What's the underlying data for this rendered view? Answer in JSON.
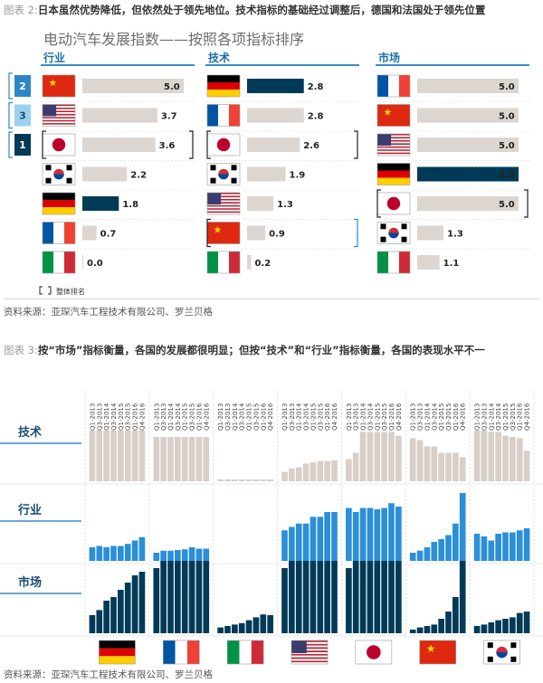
{
  "figure2": {
    "title_num": "图表 2:",
    "title_text": "日本虽然优势降低，但依然处于领先地位。技术指标的基础经过调整后，德国和法国处于领先位置",
    "subtitle": "电动汽车发展指数——按照各项指标排序",
    "legend_note": "整体排名",
    "source": "资料来源：亚琛汽车工程技术有限公司、罗兰贝格"
  },
  "figure3": {
    "title_num": "图表 3:",
    "title_text": "按“市场”指标衡量，各国的发展都很明显；但按“技术”和“行业”指标衡量，各国的表现水平不一",
    "source": "资料来源：亚琛汽车工程技术有限公司、罗兰贝格"
  },
  "colors": {
    "bar_default": "#ddd6d0",
    "bar_highlight": "#003a57",
    "tech_bar": "#d8cfc9",
    "industry_bar": "#2b8fd7",
    "market_bar": "#003a57",
    "rank_border": "#2f86c6",
    "title_blue": "#1b6fa8"
  },
  "chart_data": [
    {
      "type": "bar",
      "orientation": "horizontal",
      "title": "电动汽车发展指数——按照各项指标排序",
      "xlim": [
        0,
        5
      ],
      "overall_ranks": [
        {
          "rank": "2",
          "country": "China"
        },
        {
          "rank": "3",
          "country": "USA"
        },
        {
          "rank": "1",
          "country": "Japan"
        }
      ],
      "panels": [
        {
          "name": "行业",
          "rows": [
            {
              "flag": "china",
              "value": 5.0,
              "label": "5.0",
              "highlight": false,
              "bracket": false
            },
            {
              "flag": "usa",
              "value": 3.7,
              "label": "3.7",
              "highlight": false,
              "bracket": false
            },
            {
              "flag": "japan",
              "value": 3.6,
              "label": "3.6",
              "highlight": false,
              "bracket": true
            },
            {
              "flag": "korea",
              "value": 2.2,
              "label": "2.2",
              "highlight": false,
              "bracket": false
            },
            {
              "flag": "germany",
              "value": 1.8,
              "label": "1.8",
              "highlight": true,
              "bracket": false
            },
            {
              "flag": "france",
              "value": 0.7,
              "label": "0.7",
              "highlight": false,
              "bracket": false
            },
            {
              "flag": "italy",
              "value": 0.0,
              "label": "0.0",
              "highlight": false,
              "bracket": false
            }
          ]
        },
        {
          "name": "技术",
          "rows": [
            {
              "flag": "germany",
              "value": 2.8,
              "label": "2.8",
              "highlight": true,
              "bracket": false
            },
            {
              "flag": "france",
              "value": 2.8,
              "label": "2.8",
              "highlight": false,
              "bracket": false
            },
            {
              "flag": "japan",
              "value": 2.6,
              "label": "2.6",
              "highlight": false,
              "bracket": true
            },
            {
              "flag": "korea",
              "value": 1.9,
              "label": "1.9",
              "highlight": false,
              "bracket": false
            },
            {
              "flag": "usa",
              "value": 1.3,
              "label": "1.3",
              "highlight": false,
              "bracket": false
            },
            {
              "flag": "china",
              "value": 0.9,
              "label": "0.9",
              "highlight": false,
              "bracket": true
            },
            {
              "flag": "italy",
              "value": 0.2,
              "label": "0.2",
              "highlight": false,
              "bracket": false
            }
          ]
        },
        {
          "name": "市场",
          "rows": [
            {
              "flag": "france",
              "value": 5.0,
              "label": "5.0",
              "highlight": false,
              "bracket": false
            },
            {
              "flag": "china",
              "value": 5.0,
              "label": "5.0",
              "highlight": false,
              "bracket": false
            },
            {
              "flag": "usa",
              "value": 5.0,
              "label": "5.0",
              "highlight": false,
              "bracket": false
            },
            {
              "flag": "germany",
              "value": 5.0,
              "label": "5.0",
              "highlight": true,
              "bracket": false
            },
            {
              "flag": "japan",
              "value": 5.0,
              "label": "5.0",
              "highlight": false,
              "bracket": true
            },
            {
              "flag": "korea",
              "value": 1.3,
              "label": "1.3",
              "highlight": false,
              "bracket": false
            },
            {
              "flag": "italy",
              "value": 1.1,
              "label": "1.1",
              "highlight": false,
              "bracket": false
            }
          ]
        }
      ]
    },
    {
      "type": "bar",
      "title": "",
      "x_labels": [
        "Q1-2013",
        "Q3-2013",
        "Q1-2014",
        "Q3-2014",
        "Q1-2015",
        "Q3-2015",
        "Q1-2016",
        "Q4-2016"
      ],
      "countries": [
        "germany",
        "france",
        "italy",
        "usa",
        "japan",
        "china",
        "korea"
      ],
      "rows": [
        {
          "name": "技术",
          "values": [
            [
              0.8,
              0.8,
              0.8,
              0.8,
              0.8,
              0.8,
              0.8,
              0.8
            ],
            [
              0.7,
              0.7,
              0.7,
              0.7,
              0.7,
              0.7,
              0.7,
              0.7
            ],
            [
              0.03,
              0.03,
              0.03,
              0.03,
              0.03,
              0.03,
              0.03,
              0.03
            ],
            [
              0.15,
              0.2,
              0.22,
              0.28,
              0.3,
              0.32,
              0.32,
              0.33
            ],
            [
              0.35,
              0.45,
              0.78,
              0.78,
              0.78,
              0.78,
              0.78,
              0.72
            ],
            [
              0.68,
              0.65,
              0.55,
              0.55,
              0.45,
              0.45,
              0.45,
              0.38
            ],
            [
              0.8,
              0.8,
              0.78,
              0.78,
              0.72,
              0.7,
              0.68,
              0.48
            ]
          ]
        },
        {
          "name": "行业",
          "values": [
            [
              0.2,
              0.22,
              0.2,
              0.22,
              0.22,
              0.25,
              0.3,
              0.35
            ],
            [
              0.12,
              0.15,
              0.15,
              0.16,
              0.17,
              0.2,
              0.18,
              0.18
            ],
            [
              0.0,
              0.0,
              0.0,
              0.0,
              0.0,
              0.0,
              0.0,
              0.0
            ],
            [
              0.45,
              0.5,
              0.55,
              0.55,
              0.65,
              0.65,
              0.72,
              0.72
            ],
            [
              0.78,
              0.72,
              0.78,
              0.78,
              0.76,
              0.78,
              0.85,
              0.8
            ],
            [
              0.12,
              0.15,
              0.2,
              0.28,
              0.32,
              0.38,
              0.55,
              1.0
            ],
            [
              0.4,
              0.36,
              0.3,
              0.4,
              0.42,
              0.42,
              0.45,
              0.48
            ]
          ]
        },
        {
          "name": "市场",
          "values": [
            [
              0.25,
              0.32,
              0.45,
              0.5,
              0.6,
              0.7,
              0.8,
              0.85
            ],
            [
              0.9,
              1.0,
              1.0,
              1.0,
              1.0,
              1.0,
              1.0,
              1.0
            ],
            [
              0.08,
              0.1,
              0.12,
              0.14,
              0.18,
              0.22,
              0.26,
              0.25
            ],
            [
              0.9,
              1.0,
              1.0,
              1.0,
              1.0,
              1.0,
              1.0,
              1.0
            ],
            [
              0.9,
              1.0,
              1.0,
              1.0,
              1.0,
              1.0,
              1.0,
              1.0
            ],
            [
              0.05,
              0.08,
              0.1,
              0.12,
              0.2,
              0.3,
              0.5,
              1.0
            ],
            [
              0.1,
              0.12,
              0.15,
              0.18,
              0.2,
              0.22,
              0.28,
              0.3
            ]
          ]
        }
      ]
    }
  ]
}
